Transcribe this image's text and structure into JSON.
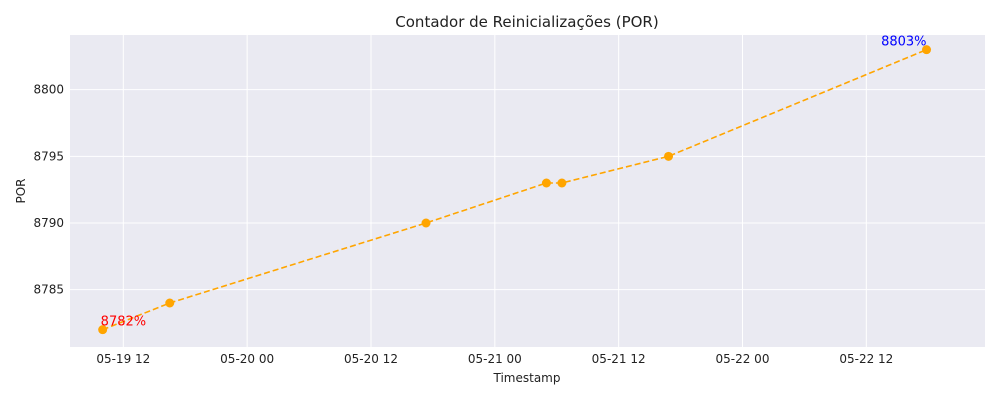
{
  "chart_data": {
    "type": "line",
    "title": "Contador de Reinicializações (POR)",
    "xlabel": "Timestamp",
    "ylabel": "POR",
    "x_tick_labels": [
      "05-19 12",
      "05-20 00",
      "05-20 12",
      "05-21 00",
      "05-21 12",
      "05-22 00",
      "05-22 12"
    ],
    "x_tick_values": [
      "2024-05-19T12:00",
      "2024-05-20T00:00",
      "2024-05-20T12:00",
      "2024-05-21T00:00",
      "2024-05-21T12:00",
      "2024-05-22T00:00",
      "2024-05-22T12:00"
    ],
    "xlim": [
      "2024-05-19T06:50",
      "2024-05-22T23:30"
    ],
    "ylim": [
      8780.7,
      8804.1
    ],
    "y_ticks": [
      8785,
      8790,
      8795,
      8800
    ],
    "grid": true,
    "series": [
      {
        "color": "#FFA500",
        "line_style": "dashed",
        "marker": "circle",
        "points": [
          {
            "x": "2024-05-19T10:00",
            "y": 8782
          },
          {
            "x": "2024-05-19T16:30",
            "y": 8784
          },
          {
            "x": "2024-05-20T17:20",
            "y": 8790
          },
          {
            "x": "2024-05-21T05:00",
            "y": 8793
          },
          {
            "x": "2024-05-21T06:30",
            "y": 8793
          },
          {
            "x": "2024-05-21T16:50",
            "y": 8795
          },
          {
            "x": "2024-05-22T17:50",
            "y": 8803
          }
        ]
      }
    ],
    "annotations": [
      {
        "text": "8782%",
        "x": "2024-05-19T10:00",
        "y": 8782,
        "color": "#FF0000"
      },
      {
        "text": "8803%",
        "x": "2024-05-22T17:50",
        "y": 8803,
        "color": "#0000FF"
      }
    ],
    "colors": {
      "background": "#EAEAF2",
      "grid": "#FFFFFF"
    }
  }
}
